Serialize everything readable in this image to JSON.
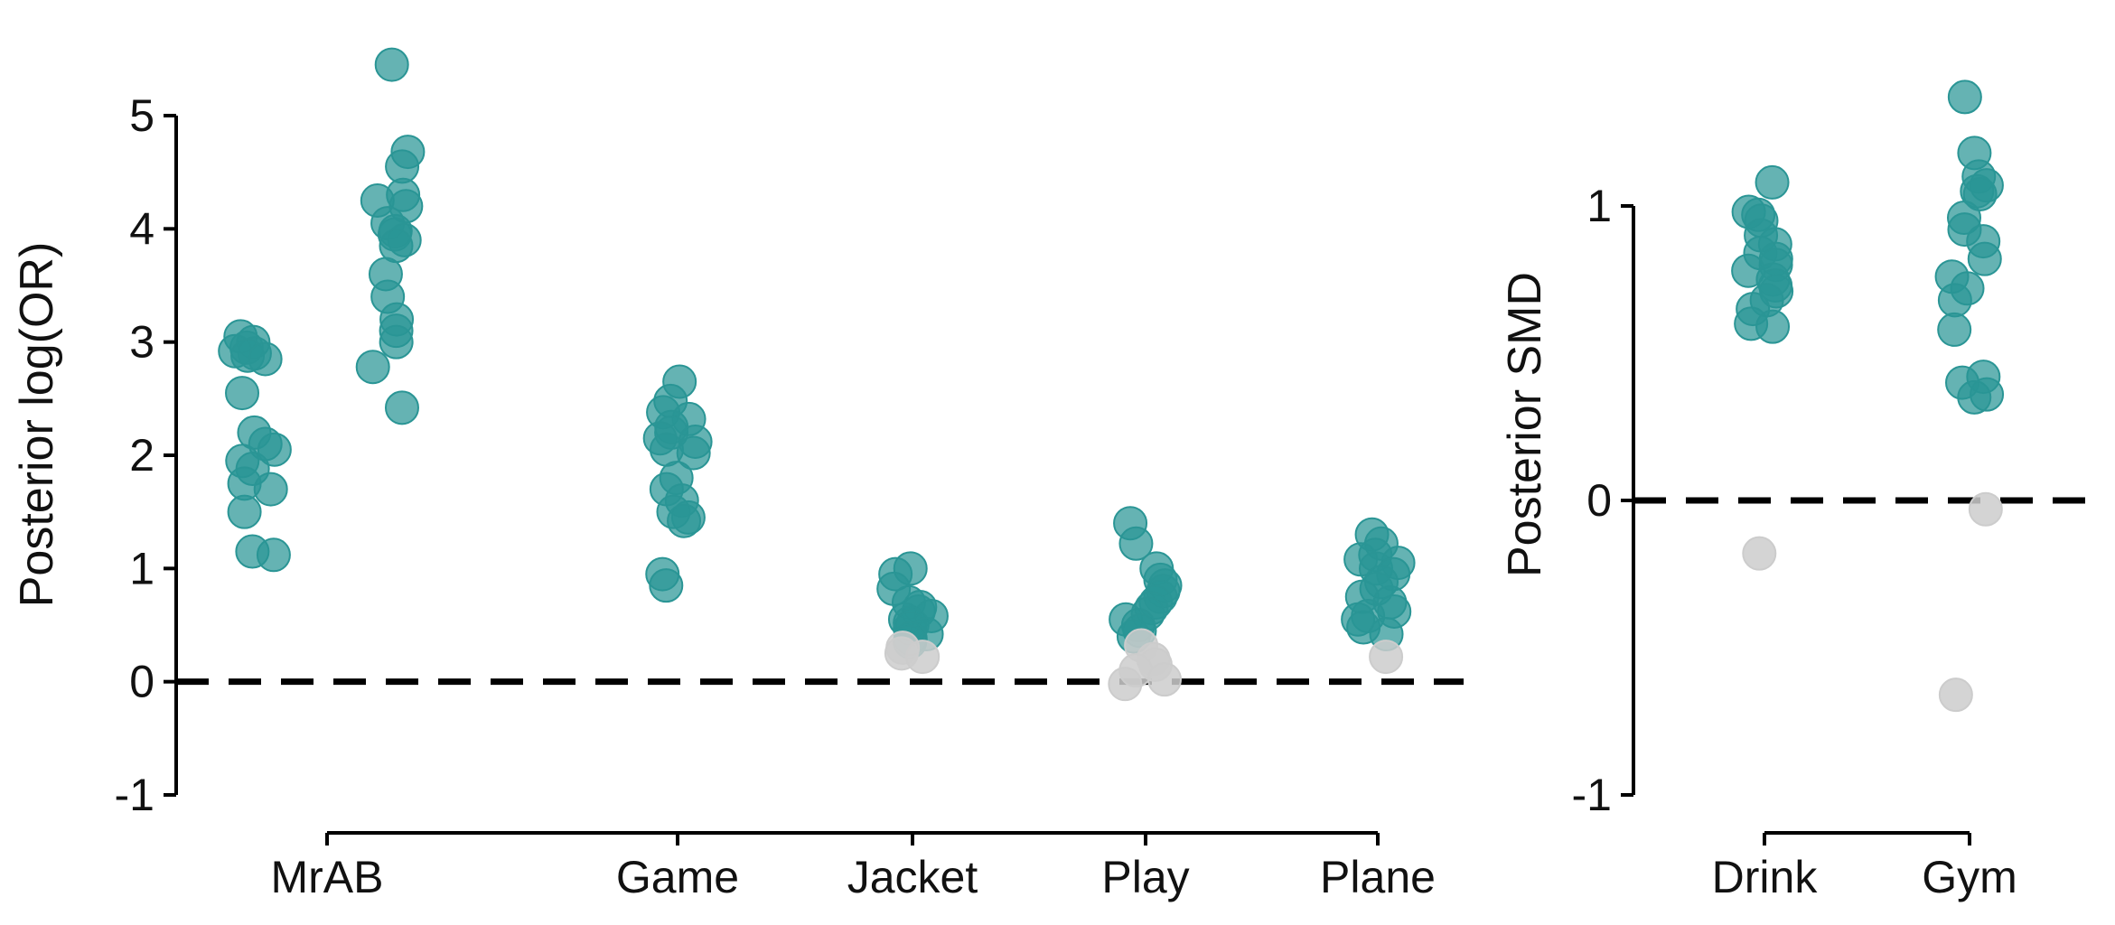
{
  "colors": {
    "significant": "#2a9595",
    "nonsignificant": "#cccccc",
    "axis": "#000000"
  },
  "chart_data": [
    {
      "type": "scatter",
      "ylabel": "Posterior log(OR)",
      "ylim": [
        -1,
        5
      ],
      "yticks": [
        "-1",
        "0",
        "1",
        "2",
        "3",
        "4",
        "5"
      ],
      "yticks_num": [
        -1,
        0,
        1,
        2,
        3,
        4,
        5
      ],
      "reference_line": 0,
      "categories": [
        "MrAB",
        "Game",
        "Jacket",
        "Play",
        "Plane"
      ],
      "points": [
        {
          "cat": "MrAB",
          "y": 3.05,
          "sig": true
        },
        {
          "cat": "MrAB",
          "y": 3.0,
          "sig": true
        },
        {
          "cat": "MrAB",
          "y": 2.95,
          "sig": true
        },
        {
          "cat": "MrAB",
          "y": 2.92,
          "sig": true
        },
        {
          "cat": "MrAB",
          "y": 2.9,
          "sig": true
        },
        {
          "cat": "MrAB",
          "y": 2.88,
          "sig": true
        },
        {
          "cat": "MrAB",
          "y": 2.85,
          "sig": true
        },
        {
          "cat": "MrAB",
          "y": 2.55,
          "sig": true
        },
        {
          "cat": "MrAB",
          "y": 2.2,
          "sig": true
        },
        {
          "cat": "MrAB",
          "y": 2.1,
          "sig": true
        },
        {
          "cat": "MrAB",
          "y": 2.05,
          "sig": true
        },
        {
          "cat": "MrAB",
          "y": 1.95,
          "sig": true
        },
        {
          "cat": "MrAB",
          "y": 1.88,
          "sig": true
        },
        {
          "cat": "MrAB",
          "y": 1.75,
          "sig": true
        },
        {
          "cat": "MrAB",
          "y": 1.7,
          "sig": true
        },
        {
          "cat": "MrAB",
          "y": 1.5,
          "sig": true
        },
        {
          "cat": "MrAB",
          "y": 1.15,
          "sig": true
        },
        {
          "cat": "MrAB",
          "y": 1.12,
          "sig": true
        },
        {
          "cat": "MrAB",
          "y": 5.45,
          "sig": true
        },
        {
          "cat": "MrAB",
          "y": 4.68,
          "sig": true
        },
        {
          "cat": "MrAB",
          "y": 4.55,
          "sig": true
        },
        {
          "cat": "MrAB",
          "y": 4.3,
          "sig": true
        },
        {
          "cat": "MrAB",
          "y": 4.25,
          "sig": true
        },
        {
          "cat": "MrAB",
          "y": 4.2,
          "sig": true
        },
        {
          "cat": "MrAB",
          "y": 4.05,
          "sig": true
        },
        {
          "cat": "MrAB",
          "y": 3.98,
          "sig": true
        },
        {
          "cat": "MrAB",
          "y": 3.95,
          "sig": true
        },
        {
          "cat": "MrAB",
          "y": 3.9,
          "sig": true
        },
        {
          "cat": "MrAB",
          "y": 3.85,
          "sig": true
        },
        {
          "cat": "MrAB",
          "y": 3.6,
          "sig": true
        },
        {
          "cat": "MrAB",
          "y": 3.4,
          "sig": true
        },
        {
          "cat": "MrAB",
          "y": 3.2,
          "sig": true
        },
        {
          "cat": "MrAB",
          "y": 3.1,
          "sig": true
        },
        {
          "cat": "MrAB",
          "y": 3.0,
          "sig": true
        },
        {
          "cat": "MrAB",
          "y": 2.78,
          "sig": true
        },
        {
          "cat": "MrAB",
          "y": 2.42,
          "sig": true
        },
        {
          "cat": "Game",
          "y": 2.65,
          "sig": true
        },
        {
          "cat": "Game",
          "y": 2.48,
          "sig": true
        },
        {
          "cat": "Game",
          "y": 2.38,
          "sig": true
        },
        {
          "cat": "Game",
          "y": 2.32,
          "sig": true
        },
        {
          "cat": "Game",
          "y": 2.25,
          "sig": true
        },
        {
          "cat": "Game",
          "y": 2.2,
          "sig": true
        },
        {
          "cat": "Game",
          "y": 2.15,
          "sig": true
        },
        {
          "cat": "Game",
          "y": 2.12,
          "sig": true
        },
        {
          "cat": "Game",
          "y": 2.05,
          "sig": true
        },
        {
          "cat": "Game",
          "y": 2.02,
          "sig": true
        },
        {
          "cat": "Game",
          "y": 1.8,
          "sig": true
        },
        {
          "cat": "Game",
          "y": 1.7,
          "sig": true
        },
        {
          "cat": "Game",
          "y": 1.6,
          "sig": true
        },
        {
          "cat": "Game",
          "y": 1.5,
          "sig": true
        },
        {
          "cat": "Game",
          "y": 1.45,
          "sig": true
        },
        {
          "cat": "Game",
          "y": 1.42,
          "sig": true
        },
        {
          "cat": "Game",
          "y": 0.95,
          "sig": true
        },
        {
          "cat": "Game",
          "y": 0.85,
          "sig": true
        },
        {
          "cat": "Jacket",
          "y": 1.0,
          "sig": true
        },
        {
          "cat": "Jacket",
          "y": 0.95,
          "sig": true
        },
        {
          "cat": "Jacket",
          "y": 0.82,
          "sig": true
        },
        {
          "cat": "Jacket",
          "y": 0.7,
          "sig": true
        },
        {
          "cat": "Jacket",
          "y": 0.66,
          "sig": true
        },
        {
          "cat": "Jacket",
          "y": 0.62,
          "sig": true
        },
        {
          "cat": "Jacket",
          "y": 0.58,
          "sig": true
        },
        {
          "cat": "Jacket",
          "y": 0.55,
          "sig": true
        },
        {
          "cat": "Jacket",
          "y": 0.52,
          "sig": true
        },
        {
          "cat": "Jacket",
          "y": 0.5,
          "sig": true
        },
        {
          "cat": "Jacket",
          "y": 0.47,
          "sig": true
        },
        {
          "cat": "Jacket",
          "y": 0.42,
          "sig": true
        },
        {
          "cat": "Jacket",
          "y": 0.38,
          "sig": true
        },
        {
          "cat": "Jacket",
          "y": 0.35,
          "sig": true
        },
        {
          "cat": "Jacket",
          "y": 0.3,
          "sig": false
        },
        {
          "cat": "Jacket",
          "y": 0.25,
          "sig": false
        },
        {
          "cat": "Jacket",
          "y": 0.22,
          "sig": false
        },
        {
          "cat": "Play",
          "y": 1.4,
          "sig": true
        },
        {
          "cat": "Play",
          "y": 1.22,
          "sig": true
        },
        {
          "cat": "Play",
          "y": 1.0,
          "sig": true
        },
        {
          "cat": "Play",
          "y": 0.9,
          "sig": true
        },
        {
          "cat": "Play",
          "y": 0.85,
          "sig": true
        },
        {
          "cat": "Play",
          "y": 0.8,
          "sig": true
        },
        {
          "cat": "Play",
          "y": 0.75,
          "sig": true
        },
        {
          "cat": "Play",
          "y": 0.7,
          "sig": true
        },
        {
          "cat": "Play",
          "y": 0.65,
          "sig": true
        },
        {
          "cat": "Play",
          "y": 0.6,
          "sig": true
        },
        {
          "cat": "Play",
          "y": 0.55,
          "sig": true
        },
        {
          "cat": "Play",
          "y": 0.5,
          "sig": true
        },
        {
          "cat": "Play",
          "y": 0.45,
          "sig": true
        },
        {
          "cat": "Play",
          "y": 0.4,
          "sig": true
        },
        {
          "cat": "Play",
          "y": 0.32,
          "sig": false
        },
        {
          "cat": "Play",
          "y": 0.2,
          "sig": false
        },
        {
          "cat": "Play",
          "y": 0.15,
          "sig": false
        },
        {
          "cat": "Play",
          "y": 0.1,
          "sig": false
        },
        {
          "cat": "Play",
          "y": 0.02,
          "sig": false
        },
        {
          "cat": "Play",
          "y": -0.02,
          "sig": false
        },
        {
          "cat": "Plane",
          "y": 1.3,
          "sig": true
        },
        {
          "cat": "Plane",
          "y": 1.22,
          "sig": true
        },
        {
          "cat": "Plane",
          "y": 1.12,
          "sig": true
        },
        {
          "cat": "Plane",
          "y": 1.08,
          "sig": true
        },
        {
          "cat": "Plane",
          "y": 1.05,
          "sig": true
        },
        {
          "cat": "Plane",
          "y": 1.0,
          "sig": true
        },
        {
          "cat": "Plane",
          "y": 0.95,
          "sig": true
        },
        {
          "cat": "Plane",
          "y": 0.88,
          "sig": true
        },
        {
          "cat": "Plane",
          "y": 0.82,
          "sig": true
        },
        {
          "cat": "Plane",
          "y": 0.75,
          "sig": true
        },
        {
          "cat": "Plane",
          "y": 0.7,
          "sig": true
        },
        {
          "cat": "Plane",
          "y": 0.62,
          "sig": true
        },
        {
          "cat": "Plane",
          "y": 0.58,
          "sig": true
        },
        {
          "cat": "Plane",
          "y": 0.55,
          "sig": true
        },
        {
          "cat": "Plane",
          "y": 0.48,
          "sig": true
        },
        {
          "cat": "Plane",
          "y": 0.42,
          "sig": true
        },
        {
          "cat": "Plane",
          "y": 0.22,
          "sig": false
        }
      ]
    },
    {
      "type": "scatter",
      "ylabel": "Posterior SMD",
      "ylim": [
        -1,
        1
      ],
      "yticks": [
        "-1",
        "0",
        "1"
      ],
      "yticks_num": [
        -1,
        0,
        1
      ],
      "reference_line": 0,
      "categories": [
        "Drink",
        "Gym"
      ],
      "points": [
        {
          "cat": "Drink",
          "y": 1.08,
          "sig": true
        },
        {
          "cat": "Drink",
          "y": 0.98,
          "sig": true
        },
        {
          "cat": "Drink",
          "y": 0.97,
          "sig": true
        },
        {
          "cat": "Drink",
          "y": 0.95,
          "sig": true
        },
        {
          "cat": "Drink",
          "y": 0.9,
          "sig": true
        },
        {
          "cat": "Drink",
          "y": 0.87,
          "sig": true
        },
        {
          "cat": "Drink",
          "y": 0.84,
          "sig": true
        },
        {
          "cat": "Drink",
          "y": 0.82,
          "sig": true
        },
        {
          "cat": "Drink",
          "y": 0.8,
          "sig": true
        },
        {
          "cat": "Drink",
          "y": 0.78,
          "sig": true
        },
        {
          "cat": "Drink",
          "y": 0.75,
          "sig": true
        },
        {
          "cat": "Drink",
          "y": 0.73,
          "sig": true
        },
        {
          "cat": "Drink",
          "y": 0.71,
          "sig": true
        },
        {
          "cat": "Drink",
          "y": 0.68,
          "sig": true
        },
        {
          "cat": "Drink",
          "y": 0.65,
          "sig": true
        },
        {
          "cat": "Drink",
          "y": 0.6,
          "sig": true
        },
        {
          "cat": "Drink",
          "y": 0.59,
          "sig": true
        },
        {
          "cat": "Drink",
          "y": -0.18,
          "sig": false
        },
        {
          "cat": "Gym",
          "y": 1.37,
          "sig": true
        },
        {
          "cat": "Gym",
          "y": 1.18,
          "sig": true
        },
        {
          "cat": "Gym",
          "y": 1.1,
          "sig": true
        },
        {
          "cat": "Gym",
          "y": 1.07,
          "sig": true
        },
        {
          "cat": "Gym",
          "y": 1.05,
          "sig": true
        },
        {
          "cat": "Gym",
          "y": 1.04,
          "sig": true
        },
        {
          "cat": "Gym",
          "y": 0.96,
          "sig": true
        },
        {
          "cat": "Gym",
          "y": 0.92,
          "sig": true
        },
        {
          "cat": "Gym",
          "y": 0.88,
          "sig": true
        },
        {
          "cat": "Gym",
          "y": 0.82,
          "sig": true
        },
        {
          "cat": "Gym",
          "y": 0.76,
          "sig": true
        },
        {
          "cat": "Gym",
          "y": 0.72,
          "sig": true
        },
        {
          "cat": "Gym",
          "y": 0.68,
          "sig": true
        },
        {
          "cat": "Gym",
          "y": 0.58,
          "sig": true
        },
        {
          "cat": "Gym",
          "y": 0.42,
          "sig": true
        },
        {
          "cat": "Gym",
          "y": 0.4,
          "sig": true
        },
        {
          "cat": "Gym",
          "y": 0.36,
          "sig": true
        },
        {
          "cat": "Gym",
          "y": 0.35,
          "sig": true
        },
        {
          "cat": "Gym",
          "y": -0.03,
          "sig": false
        },
        {
          "cat": "Gym",
          "y": -0.66,
          "sig": false
        }
      ]
    }
  ]
}
